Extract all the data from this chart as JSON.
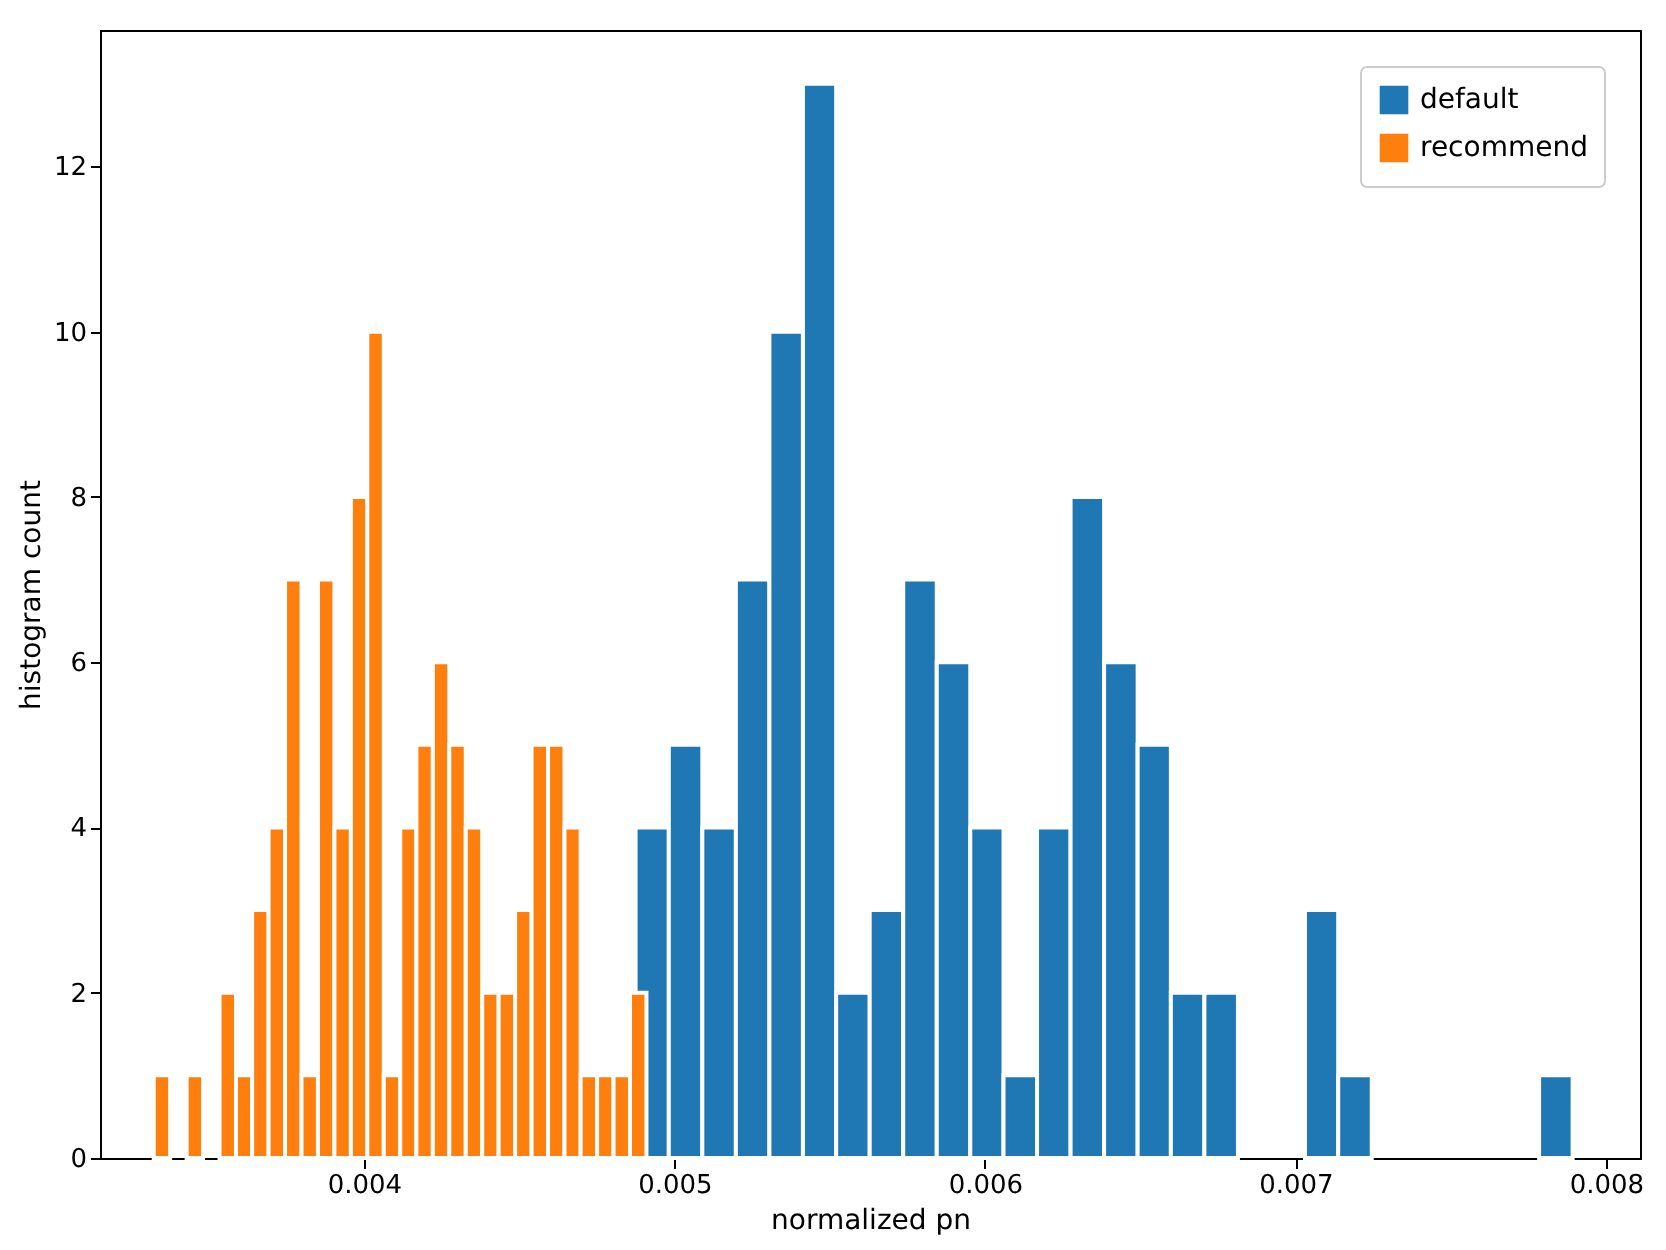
{
  "chart_data": {
    "type": "histogram",
    "xlabel": "normalized pn",
    "ylabel": "histogram count",
    "xlim": [
      0.00315,
      0.00811
    ],
    "xticks": [
      0.004,
      0.005,
      0.006,
      0.007,
      0.008
    ],
    "ylim": [
      0,
      13.65
    ],
    "yticks": [
      0,
      2,
      4,
      6,
      8,
      10,
      12
    ],
    "legend": "top right",
    "grid": false,
    "bins": [
      0.004659,
      0.004767,
      0.004875,
      0.004982,
      0.00509,
      0.005198,
      0.005306,
      0.005414,
      0.005521,
      0.005629,
      0.005737,
      0.005845,
      0.005953,
      0.00606,
      0.006168,
      0.006276,
      0.006384,
      0.006492,
      0.006599,
      0.006707,
      0.006815,
      0.006923,
      0.007031,
      0.007138,
      0.007246,
      0.007354,
      0.007462,
      0.00757,
      0.007677,
      0.007785,
      0.007893
    ],
    "series": [
      {
        "name": "default",
        "color": "#1f77b4",
        "values": [
          null,
          null,
          4,
          5,
          4,
          7,
          10,
          13,
          2,
          3,
          7,
          6,
          4,
          1,
          4,
          8,
          6,
          5,
          2,
          2,
          0,
          0,
          3,
          1,
          0,
          0,
          0,
          0,
          0,
          1
        ]
      },
      {
        "name": "recommend",
        "color": "#ff7f0e",
        "bins": [
          0.003323,
          0.003376,
          0.003429,
          0.003482,
          0.003535,
          0.003588,
          0.00364,
          0.003693,
          0.003746,
          0.003799,
          0.003852,
          0.003905,
          0.003958,
          0.004011,
          0.004064,
          0.004117,
          0.004169,
          0.004222,
          0.004275,
          0.004328,
          0.004381,
          0.004434,
          0.004487,
          0.00454,
          0.004593,
          0.004646,
          0.004698,
          0.004751,
          0.004804,
          0.004857,
          0.00491
        ],
        "values": [
          1,
          0,
          1,
          0,
          2,
          1,
          3,
          4,
          7,
          1,
          7,
          4,
          8,
          10,
          1,
          4,
          5,
          6,
          5,
          4,
          2,
          2,
          3,
          5,
          5,
          4,
          1,
          1,
          1,
          2
        ]
      }
    ]
  }
}
